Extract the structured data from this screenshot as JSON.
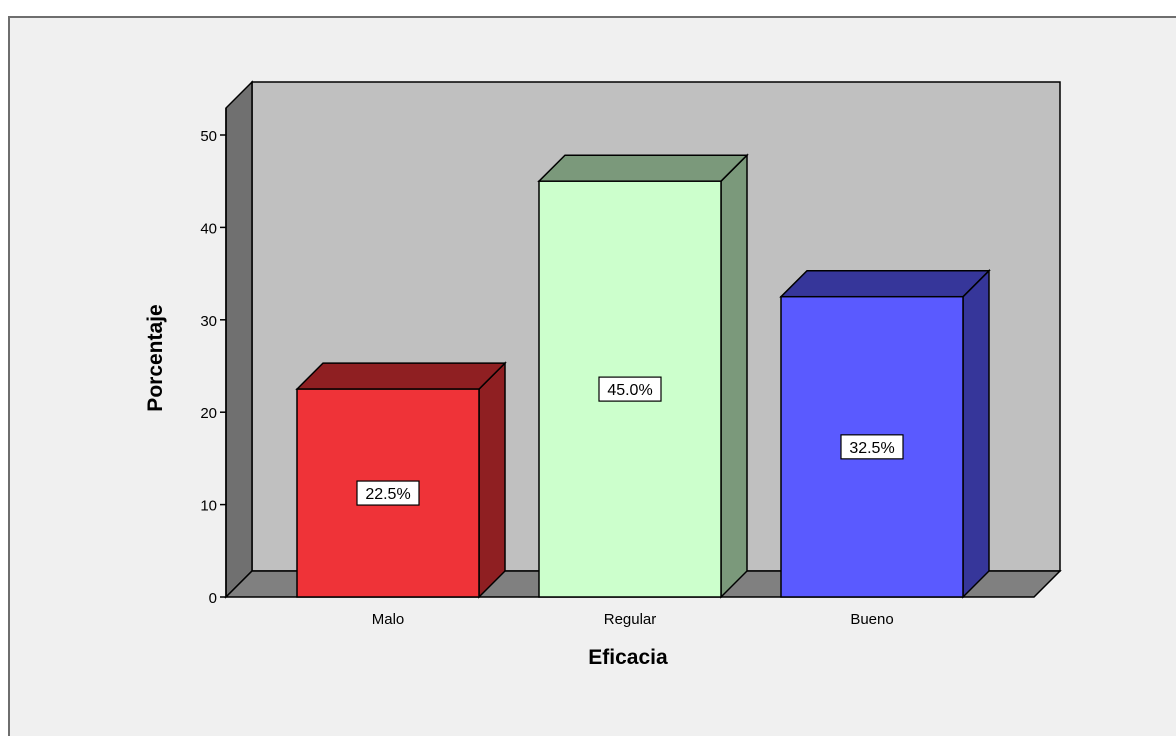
{
  "chart_data": {
    "type": "bar",
    "categories": [
      "Malo",
      "Regular",
      "Bueno"
    ],
    "values": [
      22.5,
      45.0,
      32.5
    ],
    "data_labels": [
      "22.5%",
      "45.0%",
      "32.5%"
    ],
    "xlabel": "Eficacia",
    "ylabel": "Porcentaje",
    "ylim": [
      0,
      50
    ],
    "yticks": [
      0,
      10,
      20,
      30,
      40,
      50
    ],
    "grid": false,
    "style": "3d",
    "colors": {
      "front": [
        "#ef3338",
        "#ccffcc",
        "#5a5aff"
      ],
      "side": [
        "#8f1f22",
        "#7b997b",
        "#36369a"
      ],
      "wall": "#c0c0c0",
      "wall_side": "#707070",
      "floor": "#808080"
    }
  }
}
